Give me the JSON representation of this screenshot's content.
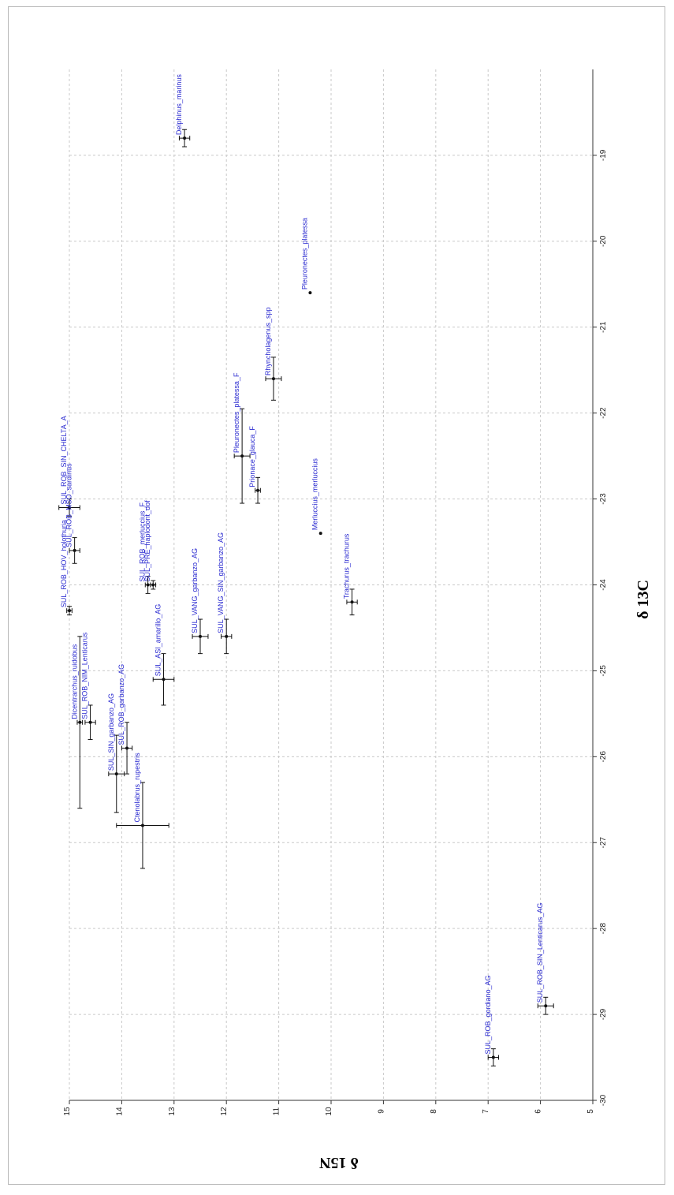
{
  "chart_data": {
    "type": "scatter",
    "orientation": "rotated-90-clockwise",
    "xlabel": "δ 13C",
    "ylabel": "δ 15N",
    "xlim": [
      -30,
      -18
    ],
    "ylim": [
      5,
      15
    ],
    "x_ticks": [
      "-30",
      "-29",
      "-28",
      "-27",
      "-26",
      "-25",
      "-24",
      "-23",
      "-22",
      "-21",
      "-20",
      "-19"
    ],
    "y_ticks": [
      "5",
      "6",
      "7",
      "8",
      "9",
      "10",
      "11",
      "12",
      "13",
      "14",
      "15"
    ],
    "grid": true,
    "error_bars": true,
    "points": [
      {
        "label": "Delphinus_marinus",
        "x": -18.8,
        "y": 12.8,
        "xerr": 0.1,
        "yerr": 0.1
      },
      {
        "label": "Pleuronectes_platessa",
        "x": -20.6,
        "y": 10.4,
        "xerr": 0.0,
        "yerr": 0.0
      },
      {
        "label": "Rhyncholagenus_spp",
        "x": -21.6,
        "y": 11.1,
        "xerr": 0.25,
        "yerr": 0.15
      },
      {
        "label": "Pleuronectes_platessa_F",
        "x": -22.5,
        "y": 11.7,
        "xerr": 0.55,
        "yerr": 0.15
      },
      {
        "label": "Prionace_glauca_F",
        "x": -22.9,
        "y": 11.4,
        "xerr": 0.15,
        "yerr": 0.05
      },
      {
        "label": "Merluccius_merluccius",
        "x": -23.4,
        "y": 10.2,
        "xerr": 0.0,
        "yerr": 0.0
      },
      {
        "label": "Trachurus_trachurus",
        "x": -24.2,
        "y": 9.6,
        "xerr": 0.15,
        "yerr": 0.1
      },
      {
        "label": "SUL_ROB_SIN_CHELTA_A",
        "x": -23.1,
        "y": 15.0,
        "xerr": 0.1,
        "yerr": 0.2
      },
      {
        "label": "SUL_ROB_MSO_sardinus",
        "x": -23.6,
        "y": 14.9,
        "xerr": 0.15,
        "yerr": 0.1
      },
      {
        "label": "SUL_ROB_HOV_holothuria",
        "x": -24.3,
        "y": 15.0,
        "xerr": 0.05,
        "yerr": 0.05
      },
      {
        "label": "Dicentrarchus_ruidobus",
        "x": -25.6,
        "y": 14.8,
        "xerr": 1.0,
        "yerr": 0.05
      },
      {
        "label": "SUL_SIN_garbanzo_AG",
        "x": -26.2,
        "y": 14.1,
        "xerr": 0.45,
        "yerr": 0.15
      },
      {
        "label": "SUL_ROB_NIM_Lenticarus",
        "x": -25.6,
        "y": 14.6,
        "xerr": 0.2,
        "yerr": 0.1
      },
      {
        "label": "SUL_ROB_garbanzo_AG",
        "x": -25.9,
        "y": 13.9,
        "xerr": 0.3,
        "yerr": 0.1
      },
      {
        "label": "Ctenolabrus_rupestris",
        "x": -26.8,
        "y": 13.6,
        "xerr": 0.5,
        "yerr": 0.5
      },
      {
        "label": "SUL_ROB_merluccius_F",
        "x": -24.0,
        "y": 13.5,
        "xerr": 0.1,
        "yerr": 0.05
      },
      {
        "label": "SUL_PRE_haplodont_dof",
        "x": -24.0,
        "y": 13.4,
        "xerr": 0.05,
        "yerr": 0.05
      },
      {
        "label": "SUL_ASI_amarillo_AG",
        "x": -25.1,
        "y": 13.2,
        "xerr": 0.3,
        "yerr": 0.2
      },
      {
        "label": "SUL_VANG_garbanzo_AG",
        "x": -24.6,
        "y": 12.5,
        "xerr": 0.2,
        "yerr": 0.15
      },
      {
        "label": "SUL_VANG_SIN_garbanzo_AG",
        "x": -24.6,
        "y": 12.0,
        "xerr": 0.2,
        "yerr": 0.1
      },
      {
        "label": "SUL_ROB_gordiano_AG",
        "x": -29.5,
        "y": 6.9,
        "xerr": 0.1,
        "yerr": 0.1
      },
      {
        "label": "SUL_ROB_SIN_Lenticarus_AG",
        "x": -28.9,
        "y": 5.9,
        "xerr": 0.1,
        "yerr": 0.15
      }
    ]
  }
}
